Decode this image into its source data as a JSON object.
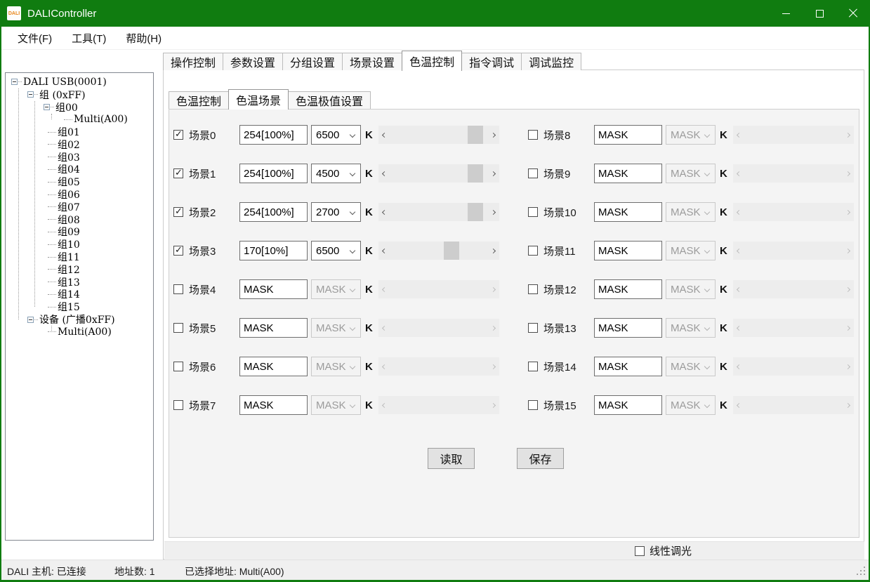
{
  "window": {
    "title": "DALIController",
    "icon_text": "DALI"
  },
  "menu": {
    "items": [
      "文件(F)",
      "工具(T)",
      "帮助(H)"
    ]
  },
  "tree": {
    "items": [
      {
        "label": "DALI USB(0001)",
        "level": 0,
        "expander": true
      },
      {
        "label": "组 (0xFF)",
        "level": 1,
        "expander": true
      },
      {
        "label": "组00",
        "level": 2,
        "expander": true
      },
      {
        "label": "Multi(A00)",
        "level": 3,
        "expander": false
      },
      {
        "label": "组01",
        "level": 2,
        "expander": false
      },
      {
        "label": "组02",
        "level": 2,
        "expander": false
      },
      {
        "label": "组03",
        "level": 2,
        "expander": false
      },
      {
        "label": "组04",
        "level": 2,
        "expander": false
      },
      {
        "label": "组05",
        "level": 2,
        "expander": false
      },
      {
        "label": "组06",
        "level": 2,
        "expander": false
      },
      {
        "label": "组07",
        "level": 2,
        "expander": false
      },
      {
        "label": "组08",
        "level": 2,
        "expander": false
      },
      {
        "label": "组09",
        "level": 2,
        "expander": false
      },
      {
        "label": "组10",
        "level": 2,
        "expander": false
      },
      {
        "label": "组11",
        "level": 2,
        "expander": false
      },
      {
        "label": "组12",
        "level": 2,
        "expander": false
      },
      {
        "label": "组13",
        "level": 2,
        "expander": false
      },
      {
        "label": "组14",
        "level": 2,
        "expander": false
      },
      {
        "label": "组15",
        "level": 2,
        "expander": false
      },
      {
        "label": "设备 (广播0xFF)",
        "level": 1,
        "expander": true
      },
      {
        "label": "Multi(A00)",
        "level": 2,
        "expander": false
      }
    ]
  },
  "tabs": {
    "items": [
      "操作控制",
      "参数设置",
      "分组设置",
      "场景设置",
      "色温控制",
      "指令调试",
      "调试监控"
    ],
    "selected": "色温控制"
  },
  "subtabs": {
    "items": [
      "色温控制",
      "色温场景",
      "色温极值设置"
    ],
    "selected": "色温场景"
  },
  "labels": {
    "kelvin_unit": "K"
  },
  "scenes": [
    {
      "label": "场景0",
      "checked": true,
      "level": "254[100%]",
      "kelvin": "6500",
      "enabled": true,
      "thumb": 0.95
    },
    {
      "label": "场景1",
      "checked": true,
      "level": "254[100%]",
      "kelvin": "4500",
      "enabled": true,
      "thumb": 0.95
    },
    {
      "label": "场景2",
      "checked": true,
      "level": "254[100%]",
      "kelvin": "2700",
      "enabled": true,
      "thumb": 0.95
    },
    {
      "label": "场景3",
      "checked": true,
      "level": "170[10%]",
      "kelvin": "6500",
      "enabled": true,
      "thumb": 0.66
    },
    {
      "label": "场景4",
      "checked": false,
      "level": "MASK",
      "kelvin": "MASK",
      "enabled": false,
      "thumb": null
    },
    {
      "label": "场景5",
      "checked": false,
      "level": "MASK",
      "kelvin": "MASK",
      "enabled": false,
      "thumb": null
    },
    {
      "label": "场景6",
      "checked": false,
      "level": "MASK",
      "kelvin": "MASK",
      "enabled": false,
      "thumb": null
    },
    {
      "label": "场景7",
      "checked": false,
      "level": "MASK",
      "kelvin": "MASK",
      "enabled": false,
      "thumb": null
    },
    {
      "label": "场景8",
      "checked": false,
      "level": "MASK",
      "kelvin": "MASK",
      "enabled": false,
      "thumb": null
    },
    {
      "label": "场景9",
      "checked": false,
      "level": "MASK",
      "kelvin": "MASK",
      "enabled": false,
      "thumb": null
    },
    {
      "label": "场景10",
      "checked": false,
      "level": "MASK",
      "kelvin": "MASK",
      "enabled": false,
      "thumb": null
    },
    {
      "label": "场景11",
      "checked": false,
      "level": "MASK",
      "kelvin": "MASK",
      "enabled": false,
      "thumb": null
    },
    {
      "label": "场景12",
      "checked": false,
      "level": "MASK",
      "kelvin": "MASK",
      "enabled": false,
      "thumb": null
    },
    {
      "label": "场景13",
      "checked": false,
      "level": "MASK",
      "kelvin": "MASK",
      "enabled": false,
      "thumb": null
    },
    {
      "label": "场景14",
      "checked": false,
      "level": "MASK",
      "kelvin": "MASK",
      "enabled": false,
      "thumb": null
    },
    {
      "label": "场景15",
      "checked": false,
      "level": "MASK",
      "kelvin": "MASK",
      "enabled": false,
      "thumb": null
    }
  ],
  "buttons": {
    "read": "读取",
    "save": "保存"
  },
  "linear_dimming": {
    "label": "线性调光",
    "checked": false
  },
  "statusbar": {
    "host": "DALI 主机: 已连接",
    "address_count": "地址数: 1",
    "selected_address": "已选择地址: Multi(A00)"
  },
  "colors": {
    "titlebar_green": "#107c10",
    "accent_border": "#107c10",
    "thumb_gray": "#cdcdcd"
  }
}
